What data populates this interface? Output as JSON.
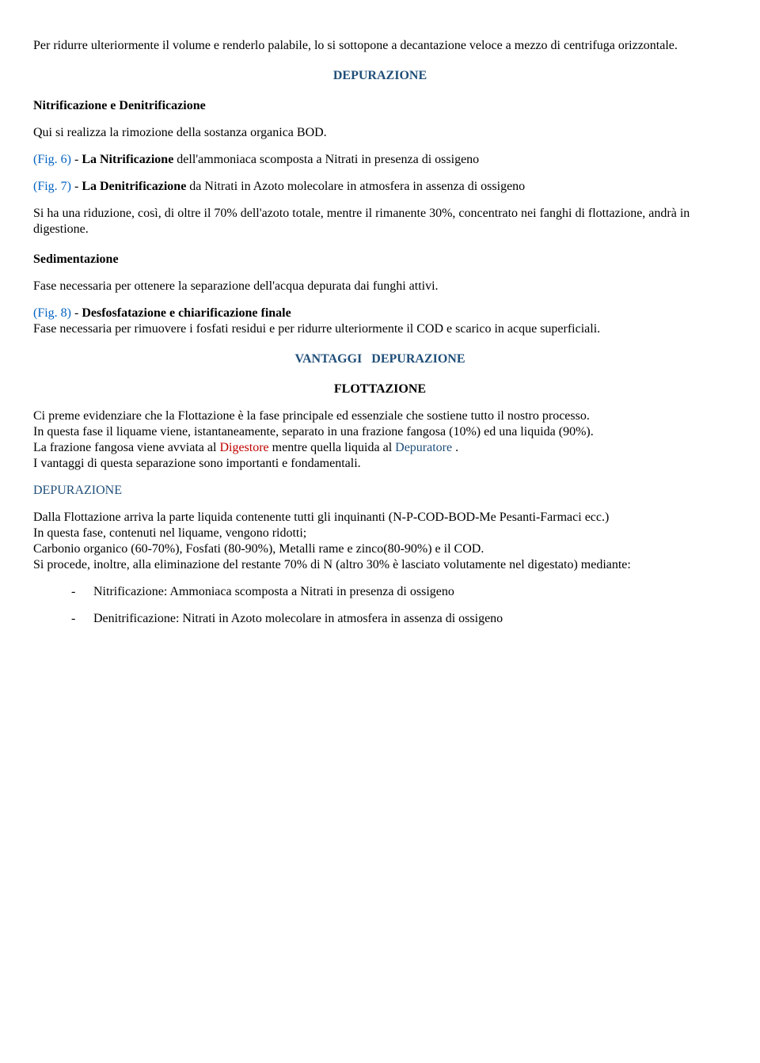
{
  "intro": "Per ridurre ulteriormente il volume e renderlo palabile, lo si sottopone a decantazione veloce a mezzo di centrifuga orizzontale.",
  "section1": {
    "title": "DEPURAZIONE",
    "h1": "Nitrificazione e Denitrificazione",
    "p1": "Qui si realizza la rimozione della sostanza organica BOD.",
    "fig6_label": "(Fig. 6)",
    "fig6_dash": " - ",
    "fig6_bold": "La Nitrificazione",
    "fig6_rest": " dell'ammoniaca scomposta a Nitrati in presenza di ossigeno",
    "fig7_label": "(Fig. 7)",
    "fig7_dash": " - ",
    "fig7_bold": "La Denitrificazione",
    "fig7_rest": " da Nitrati in Azoto molecolare in atmosfera in assenza di ossigeno",
    "p2": "Si ha una riduzione, così, di oltre il 70% dell'azoto totale, mentre il rimanente 30%, concentrato nei fanghi di flottazione, andrà in digestione.",
    "h2": "Sedimentazione",
    "p3": "Fase necessaria per ottenere la separazione dell'acqua depurata dai funghi attivi.",
    "fig8_label": "(Fig. 8)",
    "fig8_dash": " - ",
    "fig8_bold": "Desfosfatazione e chiarificazione finale",
    "fig8_rest": "Fase necessaria per rimuovere i fosfati residui e per ridurre ulteriormente il COD e scarico in acque superficiali."
  },
  "section2": {
    "title_a": "VANTAGGI",
    "title_gap": "   ",
    "title_b": "DEPURAZIONE",
    "h1": "FLOTTAZIONE",
    "p1": "Ci preme evidenziare che la Flottazione è la fase principale ed essenziale che sostiene tutto il nostro processo.",
    "p2": "In questa fase il liquame viene, istantaneamente, separato in una frazione fangosa (10%) ed una liquida (90%).",
    "p3a": "La frazione fangosa viene avviata al ",
    "p3_red": "Digestore",
    "p3b": " mentre quella liquida al ",
    "p3_blue": "Depuratore",
    "p3c": " .",
    "p4": "I vantaggi di questa separazione sono importanti e fondamentali.",
    "h2": "DEPURAZIONE",
    "p5": "Dalla Flottazione arriva la parte liquida contenente tutti gli inquinanti (N-P-COD-BOD-Me Pesanti-Farmaci ecc.)",
    "p6": "In questa fase, contenuti nel liquame, vengono ridotti;",
    "p7": "Carbonio organico (60-70%), Fosfati (80-90%), Metalli rame e zinco(80-90%) e il COD.",
    "p8": "Si procede, inoltre, alla eliminazione del restante 70% di N (altro 30% è lasciato volutamente nel digestato) mediante:",
    "li1": "Nitrificazione: Ammoniaca scomposta a Nitrati in presenza di ossigeno",
    "li2": "Denitrificazione: Nitrati in Azoto molecolare in atmosfera in assenza di ossigeno"
  },
  "colors": {
    "heading_blue": "#1f4e79",
    "link_blue": "#0563c1",
    "red": "#c00000",
    "text": "#000000",
    "background": "#ffffff"
  },
  "typography": {
    "font_family": "Times New Roman",
    "body_fontsize": 16,
    "line_height": 1.25
  }
}
